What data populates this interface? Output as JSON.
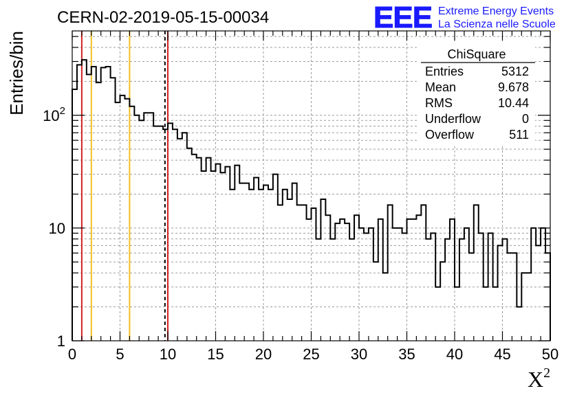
{
  "chart_data": {
    "type": "histogram",
    "title": "CERN-02-2019-05-15-00034",
    "xlabel": "X",
    "xlabel_superscript": "2",
    "ylabel": "Entries/bin",
    "xlim": [
      0,
      50
    ],
    "ylim": [
      1,
      560
    ],
    "yscale": "log",
    "grid": true,
    "x_ticks": [
      {
        "value": 0,
        "label": "0"
      },
      {
        "value": 5,
        "label": "5"
      },
      {
        "value": 10,
        "label": "10"
      },
      {
        "value": 15,
        "label": "15"
      },
      {
        "value": 20,
        "label": "20"
      },
      {
        "value": 25,
        "label": "25"
      },
      {
        "value": 30,
        "label": "30"
      },
      {
        "value": 35,
        "label": "35"
      },
      {
        "value": 40,
        "label": "40"
      },
      {
        "value": 45,
        "label": "45"
      },
      {
        "value": 50,
        "label": "50"
      }
    ],
    "y_ticks": [
      {
        "value": 1,
        "label": "1"
      },
      {
        "value": 10,
        "label": "10"
      },
      {
        "value": 100,
        "label": "10",
        "exp": "2"
      }
    ],
    "bin_width": 0.5,
    "bins": [
      {
        "x": 0.0,
        "count": 170
      },
      {
        "x": 0.5,
        "count": 280
      },
      {
        "x": 1.0,
        "count": 310
      },
      {
        "x": 1.5,
        "count": 230
      },
      {
        "x": 2.0,
        "count": 270
      },
      {
        "x": 2.5,
        "count": 195
      },
      {
        "x": 3.0,
        "count": 265
      },
      {
        "x": 3.5,
        "count": 270
      },
      {
        "x": 4.0,
        "count": 215
      },
      {
        "x": 4.5,
        "count": 130
      },
      {
        "x": 5.0,
        "count": 150
      },
      {
        "x": 5.5,
        "count": 140
      },
      {
        "x": 6.0,
        "count": 120
      },
      {
        "x": 6.5,
        "count": 100
      },
      {
        "x": 7.0,
        "count": 90
      },
      {
        "x": 7.5,
        "count": 105
      },
      {
        "x": 8.0,
        "count": 105
      },
      {
        "x": 8.5,
        "count": 80
      },
      {
        "x": 9.0,
        "count": 80
      },
      {
        "x": 9.5,
        "count": 75
      },
      {
        "x": 10.0,
        "count": 85
      },
      {
        "x": 10.5,
        "count": 75
      },
      {
        "x": 11.0,
        "count": 62
      },
      {
        "x": 11.5,
        "count": 70
      },
      {
        "x": 12.0,
        "count": 51
      },
      {
        "x": 12.5,
        "count": 45
      },
      {
        "x": 13.0,
        "count": 42
      },
      {
        "x": 13.5,
        "count": 32
      },
      {
        "x": 14.0,
        "count": 42
      },
      {
        "x": 14.5,
        "count": 32
      },
      {
        "x": 15.0,
        "count": 37
      },
      {
        "x": 15.5,
        "count": 31
      },
      {
        "x": 16.0,
        "count": 35
      },
      {
        "x": 16.5,
        "count": 22
      },
      {
        "x": 17.0,
        "count": 36
      },
      {
        "x": 17.5,
        "count": 25
      },
      {
        "x": 18.0,
        "count": 25
      },
      {
        "x": 18.5,
        "count": 22
      },
      {
        "x": 19.0,
        "count": 28
      },
      {
        "x": 19.5,
        "count": 22
      },
      {
        "x": 20.0,
        "count": 24
      },
      {
        "x": 20.5,
        "count": 22
      },
      {
        "x": 21.0,
        "count": 30
      },
      {
        "x": 21.5,
        "count": 16
      },
      {
        "x": 22.0,
        "count": 22
      },
      {
        "x": 22.5,
        "count": 18
      },
      {
        "x": 23.0,
        "count": 25
      },
      {
        "x": 23.5,
        "count": 16
      },
      {
        "x": 24.0,
        "count": 16
      },
      {
        "x": 24.5,
        "count": 12
      },
      {
        "x": 25.0,
        "count": 15
      },
      {
        "x": 25.5,
        "count": 8
      },
      {
        "x": 26.0,
        "count": 18
      },
      {
        "x": 26.5,
        "count": 13
      },
      {
        "x": 27.0,
        "count": 8
      },
      {
        "x": 27.5,
        "count": 11
      },
      {
        "x": 28.0,
        "count": 12
      },
      {
        "x": 28.5,
        "count": 11
      },
      {
        "x": 29.0,
        "count": 8
      },
      {
        "x": 29.5,
        "count": 13
      },
      {
        "x": 30.0,
        "count": 10
      },
      {
        "x": 30.5,
        "count": 9
      },
      {
        "x": 31.0,
        "count": 10
      },
      {
        "x": 31.5,
        "count": 5
      },
      {
        "x": 32.0,
        "count": 12
      },
      {
        "x": 32.5,
        "count": 4
      },
      {
        "x": 33.0,
        "count": 16
      },
      {
        "x": 33.5,
        "count": 10
      },
      {
        "x": 34.0,
        "count": 10
      },
      {
        "x": 34.5,
        "count": 9
      },
      {
        "x": 35.0,
        "count": 12
      },
      {
        "x": 35.5,
        "count": 12
      },
      {
        "x": 36.0,
        "count": 13
      },
      {
        "x": 36.5,
        "count": 16
      },
      {
        "x": 37.0,
        "count": 8
      },
      {
        "x": 37.5,
        "count": 9
      },
      {
        "x": 38.0,
        "count": 3
      },
      {
        "x": 38.5,
        "count": 5
      },
      {
        "x": 39.0,
        "count": 8
      },
      {
        "x": 39.5,
        "count": 12
      },
      {
        "x": 40.0,
        "count": 3
      },
      {
        "x": 40.5,
        "count": 8
      },
      {
        "x": 41.0,
        "count": 10
      },
      {
        "x": 41.5,
        "count": 6
      },
      {
        "x": 42.0,
        "count": 16
      },
      {
        "x": 42.5,
        "count": 9
      },
      {
        "x": 43.0,
        "count": 3
      },
      {
        "x": 43.5,
        "count": 9
      },
      {
        "x": 44.0,
        "count": 3
      },
      {
        "x": 44.5,
        "count": 7
      },
      {
        "x": 45.0,
        "count": 8
      },
      {
        "x": 45.5,
        "count": 6
      },
      {
        "x": 46.0,
        "count": 6
      },
      {
        "x": 46.5,
        "count": 2
      },
      {
        "x": 47.0,
        "count": 4
      },
      {
        "x": 47.5,
        "count": 4
      },
      {
        "x": 48.0,
        "count": 10
      },
      {
        "x": 48.5,
        "count": 7
      },
      {
        "x": 49.0,
        "count": 10
      },
      {
        "x": 49.5,
        "count": 6
      }
    ],
    "reference_lines": [
      {
        "x": 1.0,
        "color": "#d42020",
        "style": "solid"
      },
      {
        "x": 2.0,
        "color": "#f0c020",
        "style": "solid"
      },
      {
        "x": 6.0,
        "color": "#f0c020",
        "style": "solid"
      },
      {
        "x": 9.7,
        "color": "#000000",
        "style": "dashed"
      },
      {
        "x": 10.0,
        "color": "#d42020",
        "style": "solid"
      }
    ],
    "stats_box": {
      "title": "ChiSquare",
      "placement": "top-right",
      "rows": [
        {
          "label": "Entries",
          "value": "5312"
        },
        {
          "label": "Mean",
          "value": "9.678"
        },
        {
          "label": "RMS",
          "value": "10.44"
        },
        {
          "label": "Underflow",
          "value": "0"
        },
        {
          "label": "Overflow",
          "value": "511"
        }
      ]
    }
  },
  "logo": {
    "text": "EEE",
    "line1": "Extreme Energy Events",
    "line2": "La Scienza nelle Scuole",
    "color": "#1a1aff"
  }
}
